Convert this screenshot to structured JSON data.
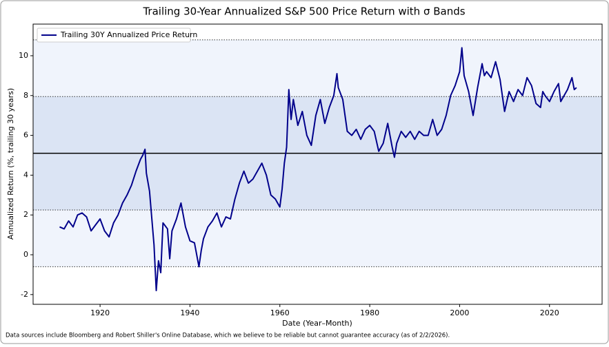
{
  "chart_data": {
    "type": "line",
    "title": "Trailing 30-Year Annualized S&P 500 Price Return with σ Bands",
    "xlabel": "Date (Year–Month)",
    "ylabel": "Annualized Return (%, trailing 30 years)",
    "footnote": "Data sources include Bloomberg and Robert Shiller's Online Database, which we believe to be reliable but cannot guarantee accuracy (as of 2/2/2026).",
    "legend": "upper left",
    "xlim": [
      1905.1,
      2031.7
    ],
    "ylim": [
      -2.49,
      11.59
    ],
    "xticks": [
      1920,
      1940,
      1960,
      1980,
      2000,
      2020
    ],
    "yticks": [
      -2,
      0,
      2,
      4,
      6,
      8,
      10
    ],
    "mean": 5.1,
    "sigma_lines": [
      -0.6,
      2.25,
      7.95,
      10.8
    ],
    "series": [
      {
        "name": "Trailing 30Y Annualized Price Return",
        "color": "#00008b",
        "x": [
          1911,
          1912,
          1913,
          1914,
          1915,
          1916,
          1917,
          1918,
          1919,
          1920,
          1921,
          1922,
          1923,
          1924,
          1925,
          1926,
          1927,
          1928,
          1929,
          1929.5,
          1930,
          1930.3,
          1931,
          1932,
          1932.5,
          1933,
          1933.5,
          1934,
          1935,
          1935.5,
          1936,
          1937,
          1938,
          1939,
          1940,
          1941,
          1942,
          1942.5,
          1943,
          1944,
          1945,
          1946,
          1947,
          1948,
          1949,
          1950,
          1951,
          1952,
          1953,
          1954,
          1955,
          1956,
          1957,
          1958,
          1959,
          1960,
          1960.5,
          1961,
          1961.5,
          1962,
          1962.5,
          1963,
          1964,
          1965,
          1966,
          1967,
          1968,
          1969,
          1970,
          1971,
          1972,
          1972.7,
          1973,
          1974,
          1975,
          1976,
          1977,
          1978,
          1979,
          1980,
          1981,
          1982,
          1983,
          1984,
          1985,
          1985.5,
          1986,
          1987,
          1988,
          1989,
          1990,
          1991,
          1992,
          1993,
          1994,
          1995,
          1996,
          1997,
          1998,
          1999,
          2000,
          2000.5,
          2001,
          2002,
          2003,
          2004,
          2005,
          2005.5,
          2006,
          2007,
          2008,
          2009,
          2010,
          2011,
          2012,
          2013,
          2014,
          2015,
          2016,
          2017,
          2018,
          2018.5,
          2019,
          2020,
          2021,
          2022,
          2022.5,
          2023,
          2024,
          2025,
          2025.5,
          2026
        ],
        "values": [
          1.4,
          1.3,
          1.7,
          1.4,
          2.0,
          2.1,
          1.9,
          1.2,
          1.5,
          1.8,
          1.2,
          0.9,
          1.6,
          2.0,
          2.6,
          3.0,
          3.5,
          4.2,
          4.8,
          5.0,
          5.3,
          4.1,
          3.2,
          0.5,
          -1.8,
          -0.3,
          -0.9,
          1.6,
          1.3,
          -0.2,
          1.2,
          1.8,
          2.6,
          1.4,
          0.7,
          0.6,
          -0.6,
          0.2,
          0.8,
          1.4,
          1.7,
          2.1,
          1.4,
          1.9,
          1.8,
          2.8,
          3.6,
          4.2,
          3.6,
          3.8,
          4.2,
          4.6,
          4.0,
          3.0,
          2.8,
          2.4,
          3.3,
          4.6,
          5.4,
          8.3,
          6.8,
          7.8,
          6.5,
          7.2,
          6.0,
          5.5,
          7.0,
          7.8,
          6.6,
          7.4,
          8.0,
          9.1,
          8.4,
          7.8,
          6.2,
          6.0,
          6.3,
          5.8,
          6.3,
          6.5,
          6.2,
          5.2,
          5.6,
          6.6,
          5.4,
          4.9,
          5.6,
          6.2,
          5.9,
          6.2,
          5.8,
          6.2,
          6.0,
          6.0,
          6.8,
          6.0,
          6.3,
          7.0,
          8.0,
          8.5,
          9.2,
          10.4,
          9.0,
          8.2,
          7.0,
          8.4,
          9.6,
          9.0,
          9.2,
          8.9,
          9.7,
          8.8,
          7.2,
          8.2,
          7.7,
          8.3,
          8.0,
          8.9,
          8.5,
          7.6,
          7.4,
          8.2,
          8.0,
          7.7,
          8.2,
          8.6,
          7.7,
          7.9,
          8.3,
          8.9,
          8.3,
          8.4
        ]
      }
    ]
  }
}
